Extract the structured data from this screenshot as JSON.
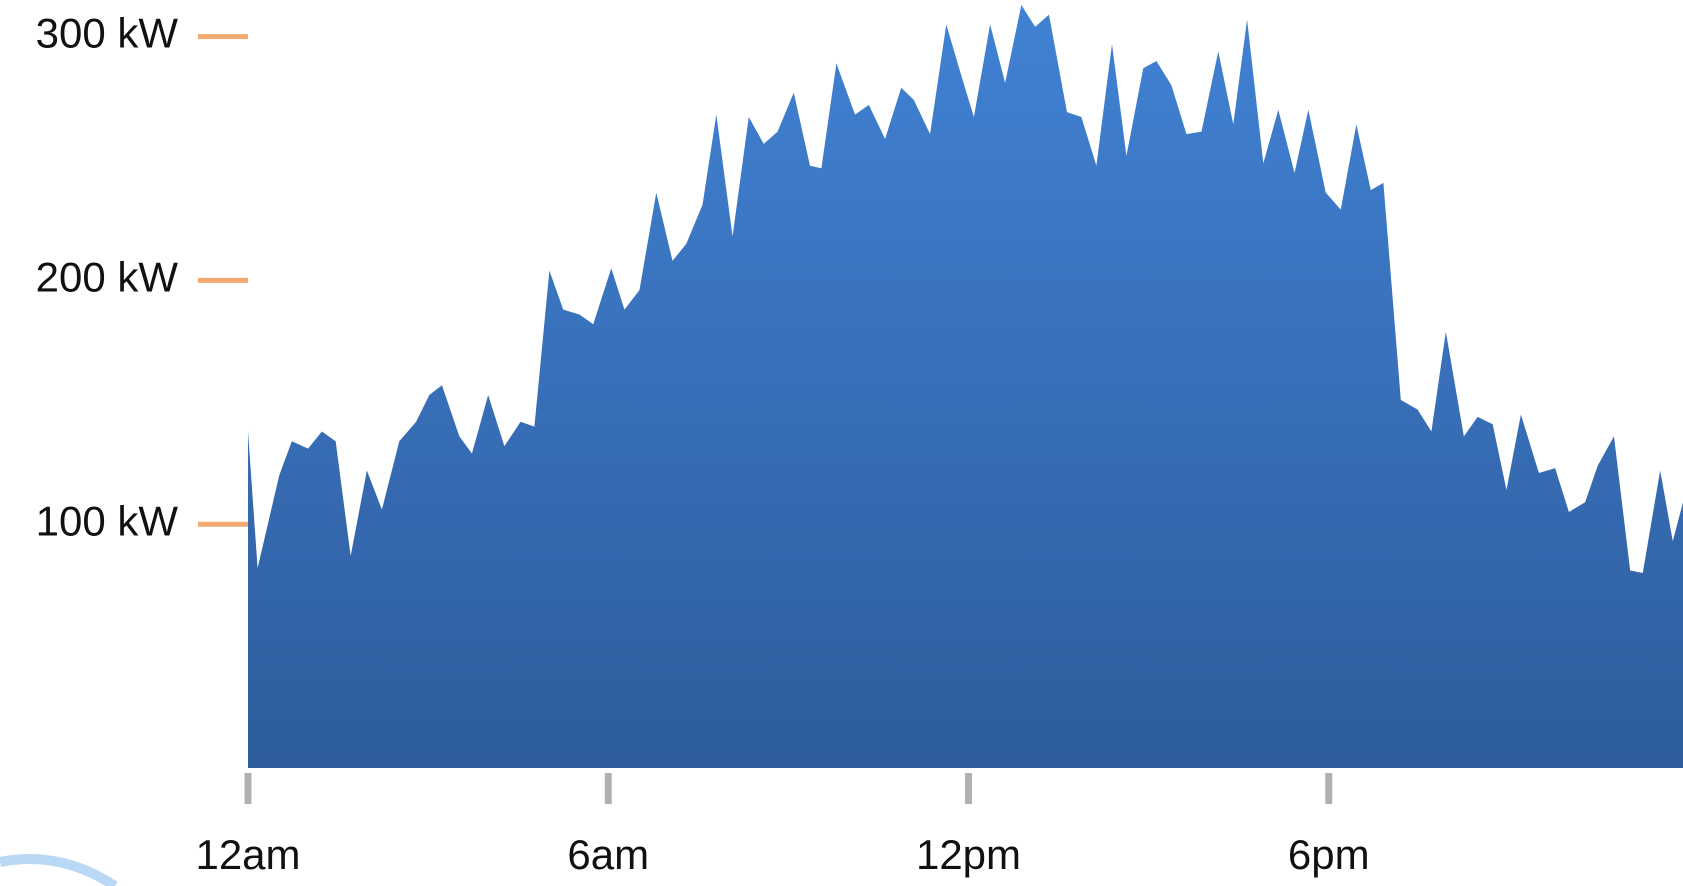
{
  "chart_data": {
    "type": "area",
    "xlim": [
      0,
      23.9
    ],
    "ylim": [
      0,
      315
    ],
    "xticks": [
      {
        "value": 0,
        "label": "12am"
      },
      {
        "value": 6,
        "label": "6am"
      },
      {
        "value": 12,
        "label": "12pm"
      },
      {
        "value": 18,
        "label": "6pm"
      }
    ],
    "yticks": [
      {
        "value": 100,
        "label": "100 kW"
      },
      {
        "value": 200,
        "label": "200 kW"
      },
      {
        "value": 300,
        "label": "300 kW"
      }
    ],
    "color": "#3a72c0",
    "x": [
      0,
      0.16,
      0.52,
      0.73,
      1.0,
      1.23,
      1.46,
      1.71,
      1.98,
      2.23,
      2.52,
      2.8,
      3.02,
      3.23,
      3.52,
      3.73,
      4.0,
      4.27,
      4.54,
      4.77,
      5.02,
      5.25,
      5.52,
      5.75,
      6.05,
      6.27,
      6.52,
      6.8,
      7.07,
      7.3,
      7.57,
      7.8,
      8.07,
      8.34,
      8.59,
      8.82,
      9.09,
      9.36,
      9.55,
      9.8,
      10.11,
      10.34,
      10.61,
      10.88,
      11.09,
      11.36,
      11.63,
      11.88,
      12.09,
      12.36,
      12.61,
      12.88,
      13.11,
      13.34,
      13.64,
      13.88,
      14.13,
      14.39,
      14.63,
      14.91,
      15.13,
      15.38,
      15.63,
      15.88,
      16.16,
      16.41,
      16.64,
      16.91,
      17.16,
      17.43,
      17.66,
      17.95,
      18.2,
      18.46,
      18.7,
      18.91,
      19.2,
      19.48,
      19.71,
      19.95,
      20.25,
      20.48,
      20.73,
      20.96,
      21.2,
      21.5,
      21.77,
      22.0,
      22.27,
      22.48,
      22.75,
      23.02,
      23.23,
      23.52,
      23.73,
      23.9
    ],
    "values": [
      138,
      82,
      120,
      134,
      131,
      138,
      134,
      87,
      122,
      106,
      134,
      142,
      153,
      157,
      136,
      129,
      153,
      132,
      142,
      140,
      204,
      188,
      186,
      182,
      205,
      188,
      196,
      236,
      208,
      215,
      231,
      268,
      218,
      267,
      256,
      261,
      277,
      247,
      246,
      289,
      268,
      272,
      258,
      279,
      274,
      260,
      305,
      284,
      267,
      305,
      281,
      313,
      304,
      309,
      269,
      267,
      247,
      297,
      251,
      287,
      290,
      280,
      260,
      261,
      294,
      264,
      307,
      248,
      270,
      244,
      270,
      236,
      229,
      264,
      237,
      240,
      151,
      147,
      138,
      179,
      136,
      144,
      141,
      114,
      145,
      121,
      123,
      105,
      109,
      124,
      136,
      81,
      80,
      122,
      93,
      109
    ]
  }
}
